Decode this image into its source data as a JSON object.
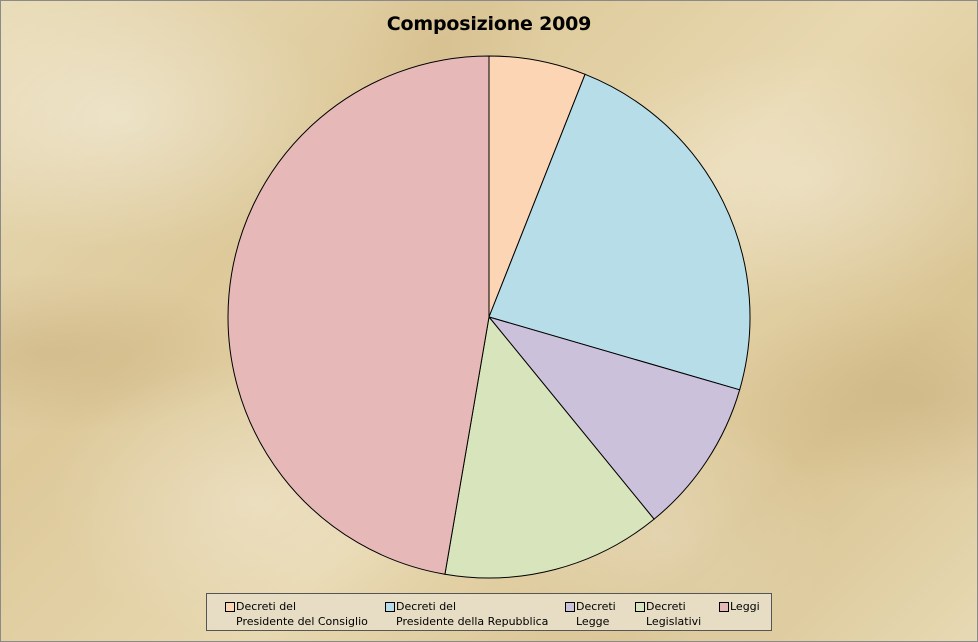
{
  "chart_data": {
    "type": "pie",
    "title": "Composizione 2009",
    "start_angle_deg": 0,
    "direction": "clockwise",
    "slices": [
      {
        "label": [
          "Decreti del",
          "Presidente del Consiglio"
        ],
        "value": 6.0,
        "color": "#fcd5b5"
      },
      {
        "label": [
          "Decreti del",
          "Presidente della Repubblica"
        ],
        "value": 23.5,
        "color": "#b6dde8"
      },
      {
        "label": [
          "Decreti",
          "Legge"
        ],
        "value": 9.6,
        "color": "#ccc1da"
      },
      {
        "label": [
          "Decreti",
          "Legislativi"
        ],
        "value": 13.6,
        "color": "#d8e4bc"
      },
      {
        "label": [
          "Leggi"
        ],
        "value": 47.3,
        "color": "#e6b9b8"
      }
    ],
    "legend_position": "bottom"
  }
}
